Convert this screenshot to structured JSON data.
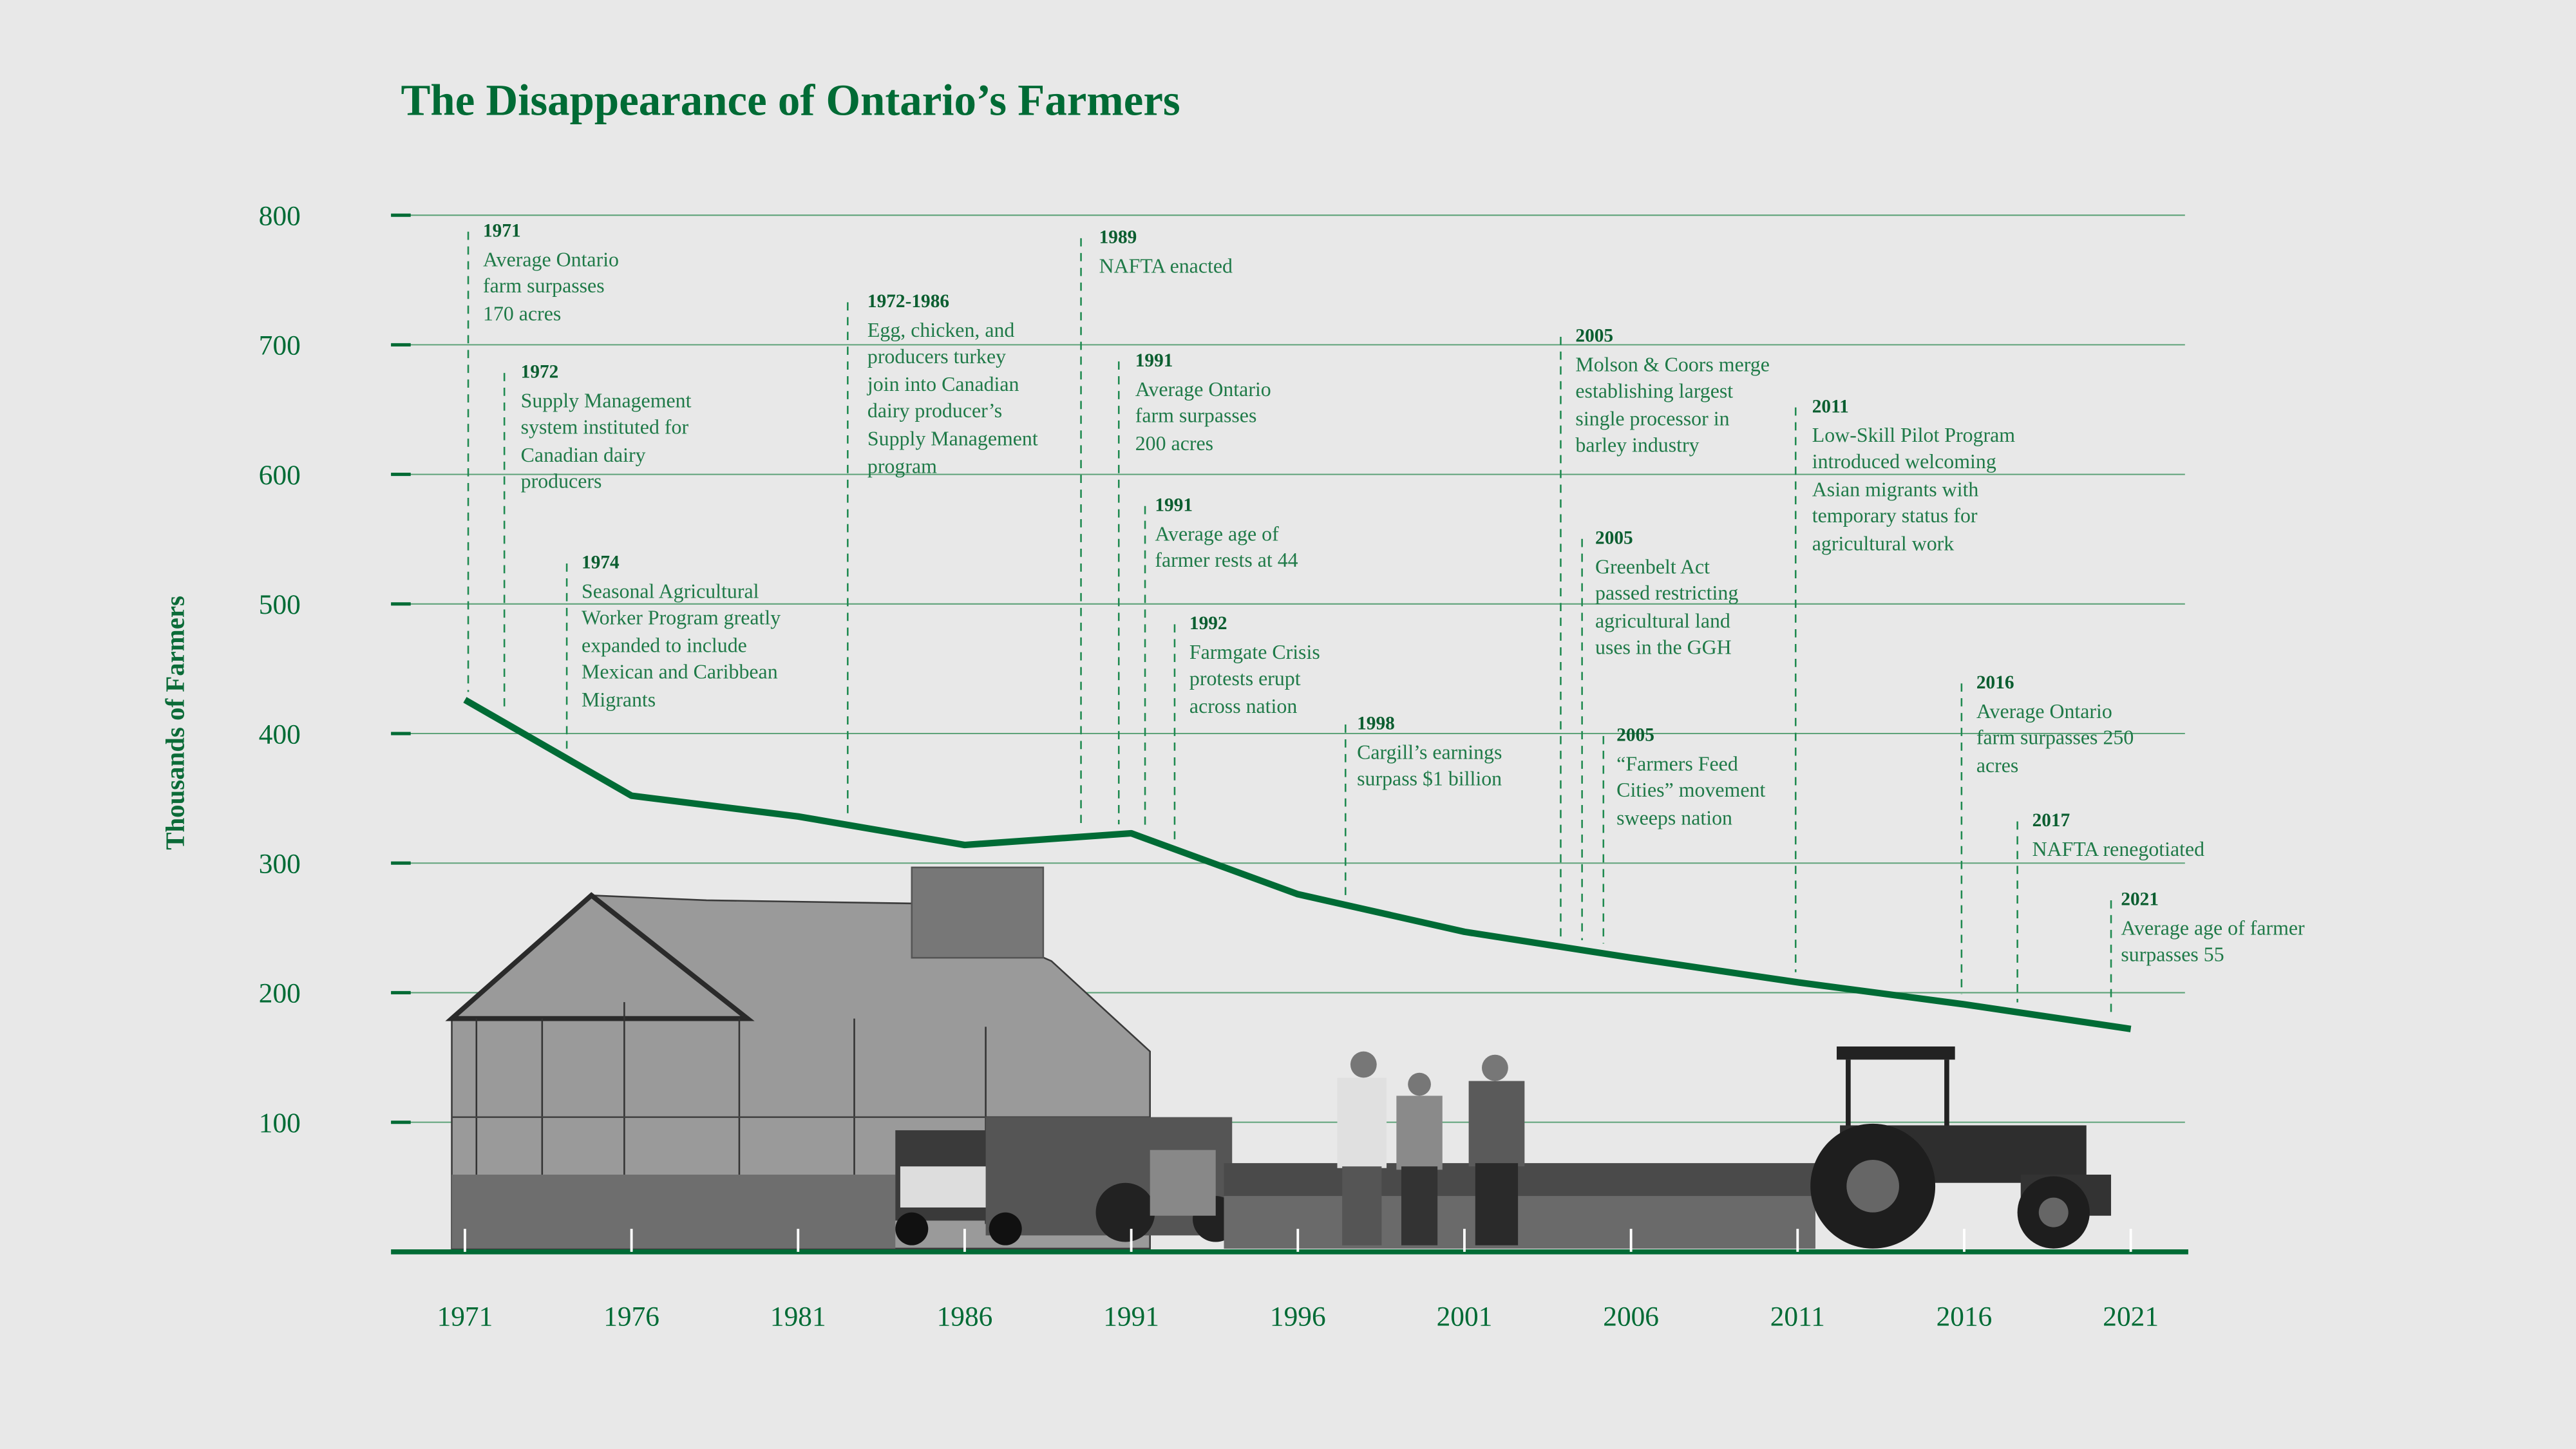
{
  "chart_data": {
    "type": "line",
    "title": "The Disappearance of Ontario’s Farmers",
    "xlabel": "",
    "ylabel": "Thousands of Farmers",
    "ylim": [
      0,
      800
    ],
    "yticks": [
      100,
      200,
      300,
      400,
      500,
      600,
      700,
      800
    ],
    "grid": true,
    "categories": [
      "1971",
      "1976",
      "1981",
      "1986",
      "1991",
      "1996",
      "2001",
      "2006",
      "2011",
      "2016",
      "2021"
    ],
    "series": [
      {
        "name": "Farmers (thousands)",
        "values": [
          426,
          352,
          336,
          314,
          323,
          276,
          247,
          227,
          208,
          191,
          172
        ],
        "color": "#006b35"
      }
    ],
    "annotations": [
      {
        "year": "1971",
        "text": "Average Ontario\nfarm surpasses\n170 acres"
      },
      {
        "year": "1972",
        "text": "Supply Management\nsystem instituted for\nCanadian dairy\nproducers"
      },
      {
        "year": "1974",
        "text": "Seasonal Agricultural\nWorker Program greatly\nexpanded to include\nMexican and Caribbean\nMigrants"
      },
      {
        "year": "1972-1986",
        "text": "Egg, chicken, and\nproducers turkey\njoin into Canadian\ndairy producer’s\nSupply Management\nprogram"
      },
      {
        "year": "1989",
        "text": "NAFTA enacted"
      },
      {
        "year": "1991",
        "text": "Average Ontario\nfarm surpasses\n200 acres"
      },
      {
        "year": "1991",
        "text": "Average age of\nfarmer rests at 44"
      },
      {
        "year": "1992",
        "text": "Farmgate Crisis\nprotests erupt\nacross nation"
      },
      {
        "year": "1998",
        "text": "Cargill’s earnings\nsurpass $1 billion"
      },
      {
        "year": "2005",
        "text": "Molson & Coors merge\nestablishing largest\nsingle processor in\nbarley industry"
      },
      {
        "year": "2005",
        "text": "Greenbelt Act\npassed restricting\nagricultural land\nuses in the GGH"
      },
      {
        "year": "2005",
        "text": "“Farmers Feed\nCities” movement\nsweeps nation"
      },
      {
        "year": "2011",
        "text": "Low-Skill Pilot Program\nintroduced welcoming\nAsian migrants with\ntemporary status for\nagricultural work"
      },
      {
        "year": "2016",
        "text": "Average Ontario\nfarm surpasses 250\nacres"
      },
      {
        "year": "2017",
        "text": "NAFTA renegotiated"
      },
      {
        "year": "2021",
        "text": "Average age of farmer\nsurpasses 55"
      }
    ]
  }
}
